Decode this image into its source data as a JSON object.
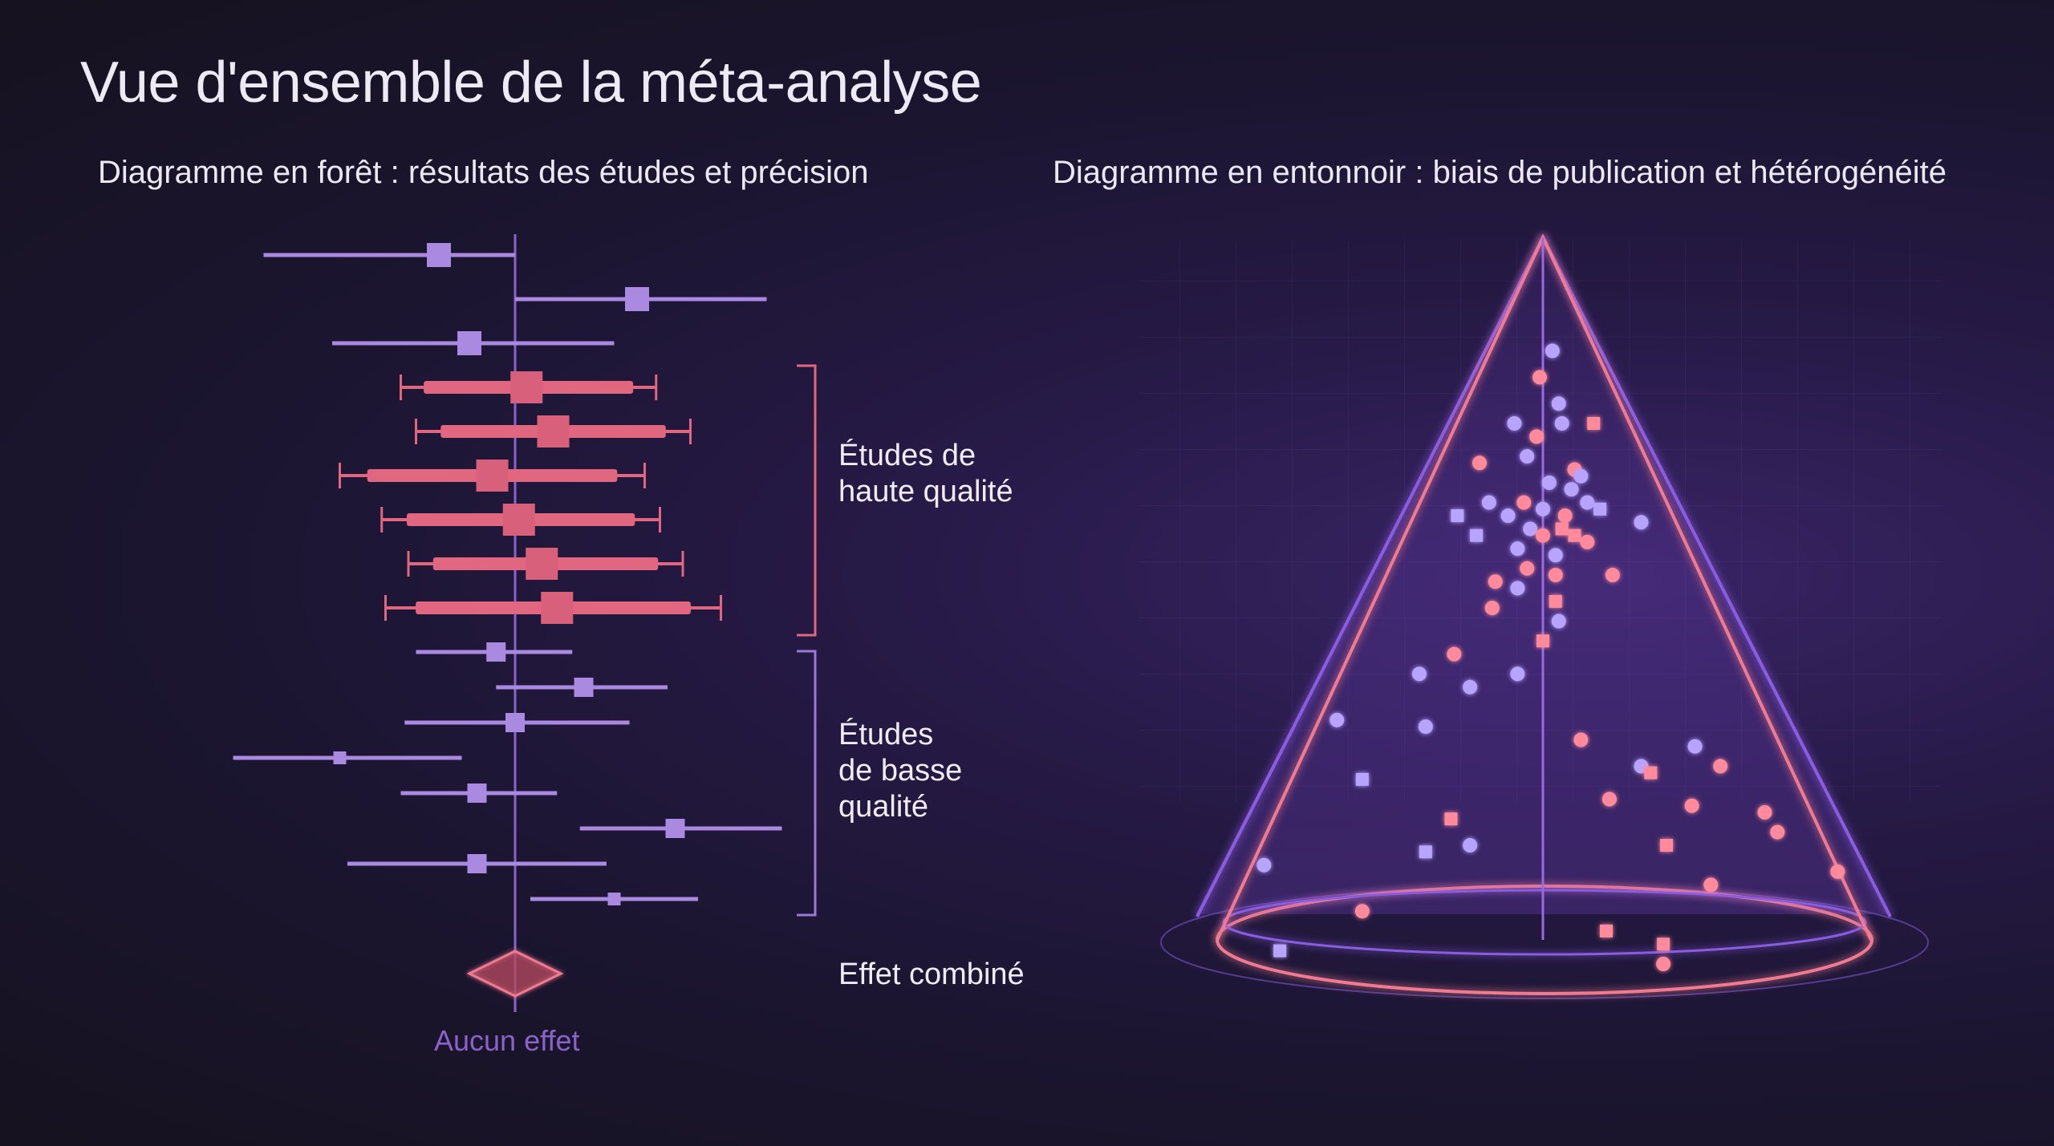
{
  "title": "Vue d'ensemble de la méta-analyse",
  "forest": {
    "subtitle": "Diagramme en forêt : résultats des études et précision",
    "group_high": "Études de\nhaute qualité",
    "group_low": "Études\nde basse\nqualité",
    "combined_label": "Effet combiné",
    "no_effect_label": "Aucun effet",
    "colors": {
      "high": "#e0677f",
      "low": "#a98ae0",
      "axis": "#8a63c9",
      "bracket_high": "#e0677f",
      "bracket_low": "#9a7ad6"
    }
  },
  "funnel": {
    "subtitle": "Diagramme en entonnoir : biais de publication et hétérogénéité",
    "colors": {
      "outer_cone": "#8a5ce0",
      "inner_cone": "#f07a90",
      "point_purple": "#b8a4ff",
      "point_pink": "#ff8a9c"
    }
  },
  "chart_data": [
    {
      "type": "forest",
      "reference_line": 0,
      "studies": [
        {
          "group": "low",
          "estimate": -1.0,
          "ci": [
            -3.3,
            0.0
          ]
        },
        {
          "group": "low",
          "estimate": 1.6,
          "ci": [
            0.0,
            3.3
          ]
        },
        {
          "group": "low",
          "estimate": -0.6,
          "ci": [
            -2.4,
            1.3
          ]
        },
        {
          "group": "high",
          "estimate": 0.15,
          "ci": [
            -1.5,
            1.85
          ]
        },
        {
          "group": "high",
          "estimate": 0.5,
          "ci": [
            -1.3,
            2.3
          ]
        },
        {
          "group": "high",
          "estimate": -0.3,
          "ci": [
            -2.3,
            1.7
          ]
        },
        {
          "group": "high",
          "estimate": 0.05,
          "ci": [
            -1.75,
            1.9
          ]
        },
        {
          "group": "high",
          "estimate": 0.35,
          "ci": [
            -1.4,
            2.2
          ]
        },
        {
          "group": "high",
          "estimate": 0.55,
          "ci": [
            -1.7,
            2.7
          ]
        },
        {
          "group": "low",
          "estimate": -0.25,
          "ci": [
            -1.3,
            0.75
          ]
        },
        {
          "group": "low",
          "estimate": 0.9,
          "ci": [
            -0.25,
            2.0
          ]
        },
        {
          "group": "low",
          "estimate": 0.0,
          "ci": [
            -1.45,
            1.5
          ]
        },
        {
          "group": "low",
          "estimate": -2.3,
          "ci": [
            -3.7,
            -0.7
          ]
        },
        {
          "group": "low",
          "estimate": -0.5,
          "ci": [
            -1.5,
            0.55
          ]
        },
        {
          "group": "low",
          "estimate": 2.1,
          "ci": [
            0.85,
            3.5
          ]
        },
        {
          "group": "low",
          "estimate": -0.5,
          "ci": [
            -2.2,
            1.2
          ]
        },
        {
          "group": "low",
          "estimate": 1.3,
          "ci": [
            0.2,
            2.4
          ]
        }
      ],
      "pooled": {
        "estimate": 0.0,
        "ci": [
          -0.6,
          0.6
        ]
      }
    },
    {
      "type": "scatter",
      "x_center": 0,
      "points": [
        {
          "x": 0.03,
          "y": 0.07,
          "shape": "circle",
          "color": "purple"
        },
        {
          "x": -0.01,
          "y": 0.11,
          "shape": "circle",
          "color": "pink"
        },
        {
          "x": 0.05,
          "y": 0.15,
          "shape": "circle",
          "color": "purple"
        },
        {
          "x": -0.09,
          "y": 0.18,
          "shape": "circle",
          "color": "purple"
        },
        {
          "x": 0.06,
          "y": 0.18,
          "shape": "circle",
          "color": "purple"
        },
        {
          "x": 0.16,
          "y": 0.18,
          "shape": "square",
          "color": "pink"
        },
        {
          "x": -0.02,
          "y": 0.2,
          "shape": "circle",
          "color": "pink"
        },
        {
          "x": -0.2,
          "y": 0.24,
          "shape": "circle",
          "color": "pink"
        },
        {
          "x": -0.05,
          "y": 0.23,
          "shape": "circle",
          "color": "purple"
        },
        {
          "x": 0.1,
          "y": 0.25,
          "shape": "circle",
          "color": "pink"
        },
        {
          "x": 0.12,
          "y": 0.26,
          "shape": "circle",
          "color": "purple"
        },
        {
          "x": 0.02,
          "y": 0.27,
          "shape": "circle",
          "color": "purple"
        },
        {
          "x": 0.09,
          "y": 0.28,
          "shape": "circle",
          "color": "purple"
        },
        {
          "x": -0.17,
          "y": 0.3,
          "shape": "circle",
          "color": "purple"
        },
        {
          "x": -0.06,
          "y": 0.3,
          "shape": "circle",
          "color": "pink"
        },
        {
          "x": 0.0,
          "y": 0.31,
          "shape": "circle",
          "color": "purple"
        },
        {
          "x": 0.14,
          "y": 0.3,
          "shape": "circle",
          "color": "purple"
        },
        {
          "x": -0.27,
          "y": 0.32,
          "shape": "square",
          "color": "purple"
        },
        {
          "x": -0.11,
          "y": 0.32,
          "shape": "circle",
          "color": "purple"
        },
        {
          "x": 0.07,
          "y": 0.32,
          "shape": "circle",
          "color": "pink"
        },
        {
          "x": 0.18,
          "y": 0.31,
          "shape": "square",
          "color": "purple"
        },
        {
          "x": 0.31,
          "y": 0.33,
          "shape": "circle",
          "color": "purple"
        },
        {
          "x": -0.04,
          "y": 0.34,
          "shape": "circle",
          "color": "purple"
        },
        {
          "x": 0.06,
          "y": 0.34,
          "shape": "square",
          "color": "pink"
        },
        {
          "x": 0.1,
          "y": 0.35,
          "shape": "square",
          "color": "pink"
        },
        {
          "x": -0.21,
          "y": 0.35,
          "shape": "square",
          "color": "purple"
        },
        {
          "x": 0.0,
          "y": 0.35,
          "shape": "circle",
          "color": "pink"
        },
        {
          "x": 0.14,
          "y": 0.36,
          "shape": "circle",
          "color": "pink"
        },
        {
          "x": -0.08,
          "y": 0.37,
          "shape": "circle",
          "color": "purple"
        },
        {
          "x": 0.04,
          "y": 0.38,
          "shape": "circle",
          "color": "purple"
        },
        {
          "x": -0.05,
          "y": 0.4,
          "shape": "circle",
          "color": "pink"
        },
        {
          "x": 0.04,
          "y": 0.41,
          "shape": "circle",
          "color": "pink"
        },
        {
          "x": 0.22,
          "y": 0.41,
          "shape": "circle",
          "color": "pink"
        },
        {
          "x": -0.15,
          "y": 0.42,
          "shape": "circle",
          "color": "pink"
        },
        {
          "x": -0.08,
          "y": 0.43,
          "shape": "circle",
          "color": "purple"
        },
        {
          "x": 0.04,
          "y": 0.45,
          "shape": "square",
          "color": "pink"
        },
        {
          "x": -0.16,
          "y": 0.46,
          "shape": "circle",
          "color": "pink"
        },
        {
          "x": 0.05,
          "y": 0.48,
          "shape": "circle",
          "color": "purple"
        },
        {
          "x": 0.0,
          "y": 0.51,
          "shape": "square",
          "color": "pink"
        },
        {
          "x": -0.28,
          "y": 0.53,
          "shape": "circle",
          "color": "pink"
        },
        {
          "x": -0.39,
          "y": 0.56,
          "shape": "circle",
          "color": "purple"
        },
        {
          "x": -0.08,
          "y": 0.56,
          "shape": "circle",
          "color": "purple"
        },
        {
          "x": -0.23,
          "y": 0.58,
          "shape": "circle",
          "color": "purple"
        },
        {
          "x": -0.65,
          "y": 0.63,
          "shape": "circle",
          "color": "purple"
        },
        {
          "x": -0.37,
          "y": 0.64,
          "shape": "circle",
          "color": "purple"
        },
        {
          "x": 0.12,
          "y": 0.66,
          "shape": "circle",
          "color": "pink"
        },
        {
          "x": 0.48,
          "y": 0.67,
          "shape": "circle",
          "color": "purple"
        },
        {
          "x": 0.31,
          "y": 0.7,
          "shape": "circle",
          "color": "purple"
        },
        {
          "x": 0.56,
          "y": 0.7,
          "shape": "circle",
          "color": "pink"
        },
        {
          "x": -0.57,
          "y": 0.72,
          "shape": "square",
          "color": "purple"
        },
        {
          "x": 0.34,
          "y": 0.71,
          "shape": "square",
          "color": "pink"
        },
        {
          "x": 0.21,
          "y": 0.75,
          "shape": "circle",
          "color": "pink"
        },
        {
          "x": 0.47,
          "y": 0.76,
          "shape": "circle",
          "color": "pink"
        },
        {
          "x": 0.7,
          "y": 0.77,
          "shape": "circle",
          "color": "pink"
        },
        {
          "x": -0.29,
          "y": 0.78,
          "shape": "square",
          "color": "pink"
        },
        {
          "x": 0.74,
          "y": 0.8,
          "shape": "circle",
          "color": "pink"
        },
        {
          "x": -0.23,
          "y": 0.82,
          "shape": "circle",
          "color": "purple"
        },
        {
          "x": -0.37,
          "y": 0.83,
          "shape": "square",
          "color": "purple"
        },
        {
          "x": 0.39,
          "y": 0.82,
          "shape": "square",
          "color": "pink"
        },
        {
          "x": -0.88,
          "y": 0.85,
          "shape": "circle",
          "color": "purple"
        },
        {
          "x": 0.93,
          "y": 0.86,
          "shape": "circle",
          "color": "pink"
        },
        {
          "x": 0.53,
          "y": 0.88,
          "shape": "circle",
          "color": "pink"
        },
        {
          "x": -0.57,
          "y": 0.92,
          "shape": "circle",
          "color": "pink"
        },
        {
          "x": 0.2,
          "y": 0.95,
          "shape": "square",
          "color": "pink"
        },
        {
          "x": 0.38,
          "y": 0.97,
          "shape": "square",
          "color": "pink"
        },
        {
          "x": -0.83,
          "y": 0.98,
          "shape": "square",
          "color": "purple"
        },
        {
          "x": 0.38,
          "y": 1.0,
          "shape": "circle",
          "color": "pink"
        }
      ]
    }
  ]
}
